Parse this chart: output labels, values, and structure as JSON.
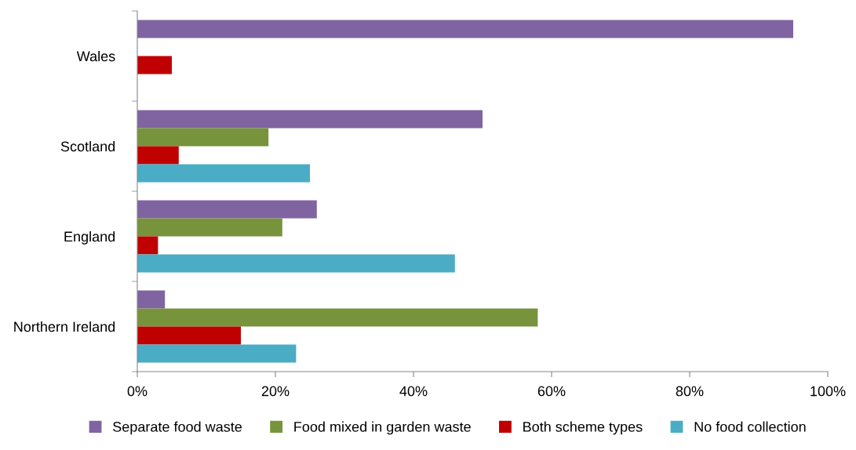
{
  "chart_data": {
    "type": "bar",
    "orientation": "horizontal",
    "categories": [
      "Wales",
      "Scotland",
      "England",
      "Northern Ireland"
    ],
    "series": [
      {
        "name": "Separate food waste",
        "color": "#8064a2",
        "values": [
          95,
          50,
          26,
          4
        ]
      },
      {
        "name": "Food mixed in garden waste",
        "color": "#77933c",
        "values": [
          0,
          19,
          21,
          58
        ]
      },
      {
        "name": "Both scheme types",
        "color": "#c00000",
        "values": [
          5,
          6,
          3,
          15
        ]
      },
      {
        "name": "No food collection",
        "color": "#4bacc6",
        "values": [
          0,
          25,
          46,
          23
        ]
      }
    ],
    "xlim": [
      0,
      100
    ],
    "xticks": [
      {
        "value": 0,
        "label": "0%"
      },
      {
        "value": 20,
        "label": "20%"
      },
      {
        "value": 40,
        "label": "40%"
      },
      {
        "value": 60,
        "label": "60%"
      },
      {
        "value": 80,
        "label": "80%"
      },
      {
        "value": 100,
        "label": "100%"
      }
    ],
    "grid": false,
    "legend": "bottom"
  }
}
